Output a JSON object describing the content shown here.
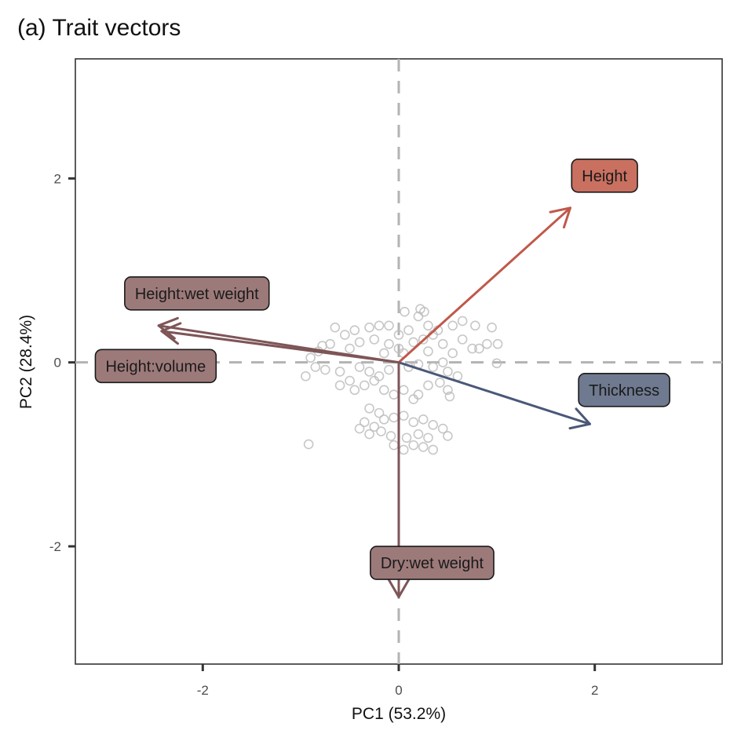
{
  "chart_data": {
    "type": "scatter",
    "title": "(a) Trait vectors",
    "xlabel": "PC1 (53.2%)",
    "ylabel": "PC2 (28.4%)",
    "xlim": [
      -3.3,
      3.3
    ],
    "ylim": [
      -3.28,
      3.3
    ],
    "xticks": [
      -2,
      0,
      2
    ],
    "yticks": [
      -2,
      0,
      2
    ],
    "tick_labels": {
      "x": [
        "-2",
        "0",
        "2"
      ],
      "y": [
        "-2",
        "0",
        "2"
      ]
    },
    "grid": false,
    "reference_lines": {
      "x": 0,
      "y": 0,
      "style": "dashed"
    },
    "point_color": "#bdbdbd",
    "vectors": [
      {
        "label": "Height",
        "x": 1.75,
        "y": 1.68,
        "label_x": 2.1,
        "label_y": 2.03,
        "color": "#c0584a",
        "fill": "#c97060"
      },
      {
        "label": "Thickness",
        "x": 1.95,
        "y": -0.67,
        "label_x": 2.3,
        "label_y": -0.3,
        "color": "#4a5878",
        "fill": "#6f7a90"
      },
      {
        "label": "Height:wet weight",
        "x": -2.45,
        "y": 0.4,
        "label_x": -2.06,
        "label_y": 0.75,
        "color": "#7e5557",
        "fill": "#9d7a7a"
      },
      {
        "label": "Height:volume",
        "x": -2.42,
        "y": 0.34,
        "label_x": -2.48,
        "label_y": -0.04,
        "color": "#7e5557",
        "fill": "#9d7a7a"
      },
      {
        "label": "Dry:wet weight",
        "x": 0.0,
        "y": -2.55,
        "label_x": 0.34,
        "label_y": -2.18,
        "color": "#7e5557",
        "fill": "#9d7a7a"
      }
    ],
    "points": [
      [
        0.06,
        0.55
      ],
      [
        0.22,
        0.58
      ],
      [
        0.26,
        0.55
      ],
      [
        0.2,
        0.5
      ],
      [
        0.3,
        0.4
      ],
      [
        0.4,
        0.35
      ],
      [
        0.55,
        0.4
      ],
      [
        0.65,
        0.45
      ],
      [
        0.78,
        0.4
      ],
      [
        0.95,
        0.38
      ],
      [
        1.01,
        0.2
      ],
      [
        1.0,
        -0.01
      ],
      [
        0.9,
        0.2
      ],
      [
        0.75,
        0.15
      ],
      [
        0.55,
        0.1
      ],
      [
        0.45,
        0.2
      ],
      [
        0.35,
        0.3
      ],
      [
        0.1,
        0.35
      ],
      [
        0.0,
        0.3
      ],
      [
        -0.1,
        0.4
      ],
      [
        -0.2,
        0.4
      ],
      [
        -0.3,
        0.38
      ],
      [
        -0.45,
        0.35
      ],
      [
        -0.55,
        0.3
      ],
      [
        -0.65,
        0.38
      ],
      [
        -0.7,
        0.2
      ],
      [
        -0.78,
        0.18
      ],
      [
        -0.82,
        0.12
      ],
      [
        -0.9,
        0.05
      ],
      [
        -0.95,
        -0.15
      ],
      [
        -0.85,
        -0.05
      ],
      [
        -0.75,
        -0.08
      ],
      [
        -0.6,
        -0.1
      ],
      [
        -0.4,
        -0.05
      ],
      [
        -0.3,
        -0.1
      ],
      [
        -0.2,
        -0.15
      ],
      [
        -0.1,
        -0.08
      ],
      [
        0.1,
        -0.05
      ],
      [
        0.2,
        -0.02
      ],
      [
        0.35,
        -0.05
      ],
      [
        0.45,
        0.0
      ],
      [
        0.5,
        -0.1
      ],
      [
        0.6,
        -0.15
      ],
      [
        0.42,
        -0.22
      ],
      [
        0.3,
        -0.25
      ],
      [
        0.2,
        -0.35
      ],
      [
        0.15,
        -0.4
      ],
      [
        0.5,
        -0.3
      ],
      [
        0.52,
        -0.37
      ],
      [
        -0.6,
        -0.25
      ],
      [
        -0.5,
        -0.2
      ],
      [
        -0.45,
        -0.3
      ],
      [
        -0.35,
        -0.25
      ],
      [
        -0.25,
        -0.2
      ],
      [
        -0.15,
        -0.3
      ],
      [
        -0.05,
        -0.35
      ],
      [
        0.05,
        -0.3
      ],
      [
        -0.3,
        -0.5
      ],
      [
        -0.2,
        -0.55
      ],
      [
        -0.35,
        -0.65
      ],
      [
        -0.25,
        -0.7
      ],
      [
        -0.15,
        -0.62
      ],
      [
        -0.05,
        -0.6
      ],
      [
        0.05,
        -0.58
      ],
      [
        0.15,
        -0.65
      ],
      [
        0.25,
        -0.62
      ],
      [
        0.35,
        -0.68
      ],
      [
        -0.4,
        -0.72
      ],
      [
        -0.3,
        -0.78
      ],
      [
        -0.18,
        -0.75
      ],
      [
        -0.08,
        -0.8
      ],
      [
        0.08,
        -0.82
      ],
      [
        0.2,
        -0.78
      ],
      [
        0.3,
        -0.82
      ],
      [
        0.45,
        -0.72
      ],
      [
        0.5,
        -0.8
      ],
      [
        -0.05,
        -0.9
      ],
      [
        0.05,
        -0.95
      ],
      [
        0.15,
        -0.9
      ],
      [
        0.25,
        -0.92
      ],
      [
        0.35,
        -0.95
      ],
      [
        -0.92,
        -0.89
      ],
      [
        0.0,
        0.15
      ],
      [
        -0.1,
        0.2
      ],
      [
        0.15,
        0.22
      ],
      [
        0.25,
        0.25
      ],
      [
        -0.25,
        0.25
      ],
      [
        -0.4,
        0.22
      ],
      [
        0.05,
        0.1
      ],
      [
        -0.15,
        0.1
      ],
      [
        0.3,
        0.12
      ],
      [
        -0.5,
        0.15
      ],
      [
        0.65,
        0.25
      ],
      [
        0.82,
        0.15
      ]
    ]
  }
}
